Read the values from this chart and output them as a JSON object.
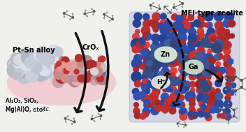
{
  "bg_color": "#f0f0ec",
  "left_panel": {
    "catalyst_label": "Pt–Sn alloy",
    "support_label": "Al₂O₃, SiO₂,\nMg(Al)O, etc.",
    "crox_label": "CrOₓ",
    "pt_sn_light": "#c8cce0",
    "pt_sn_mid": "#a8aec8",
    "pt_sn_dark": "#7880a0",
    "crox_pink_light": "#f0c0c8",
    "crox_pink_mid": "#e89898",
    "crox_red": "#cc3333",
    "crox_blue": "#5566aa",
    "crox_gray": "#b0a0a8",
    "crox_white": "#e8e0dc",
    "support_color": "#f0c8d0",
    "support_pink_light": "#f8dce0",
    "support_red": "#cc4444"
  },
  "right_panel": {
    "zeolite_label": "MFI-type zeolite",
    "zn_label": "Zn",
    "ga_label": "Ga",
    "hp_label": "H⁺",
    "zeolite_blue": "#3355bb",
    "zeolite_blue2": "#5577cc",
    "zeolite_red": "#cc3333",
    "zeolite_red2": "#ee4444",
    "zeolite_gray": "#8899cc",
    "zn_fill": "#d8edd8",
    "ga_fill": "#c8e0c8"
  },
  "mol_c": "#555555",
  "mol_h": "#999999",
  "mol_bond": "#555555",
  "arrow_color": "#111111"
}
